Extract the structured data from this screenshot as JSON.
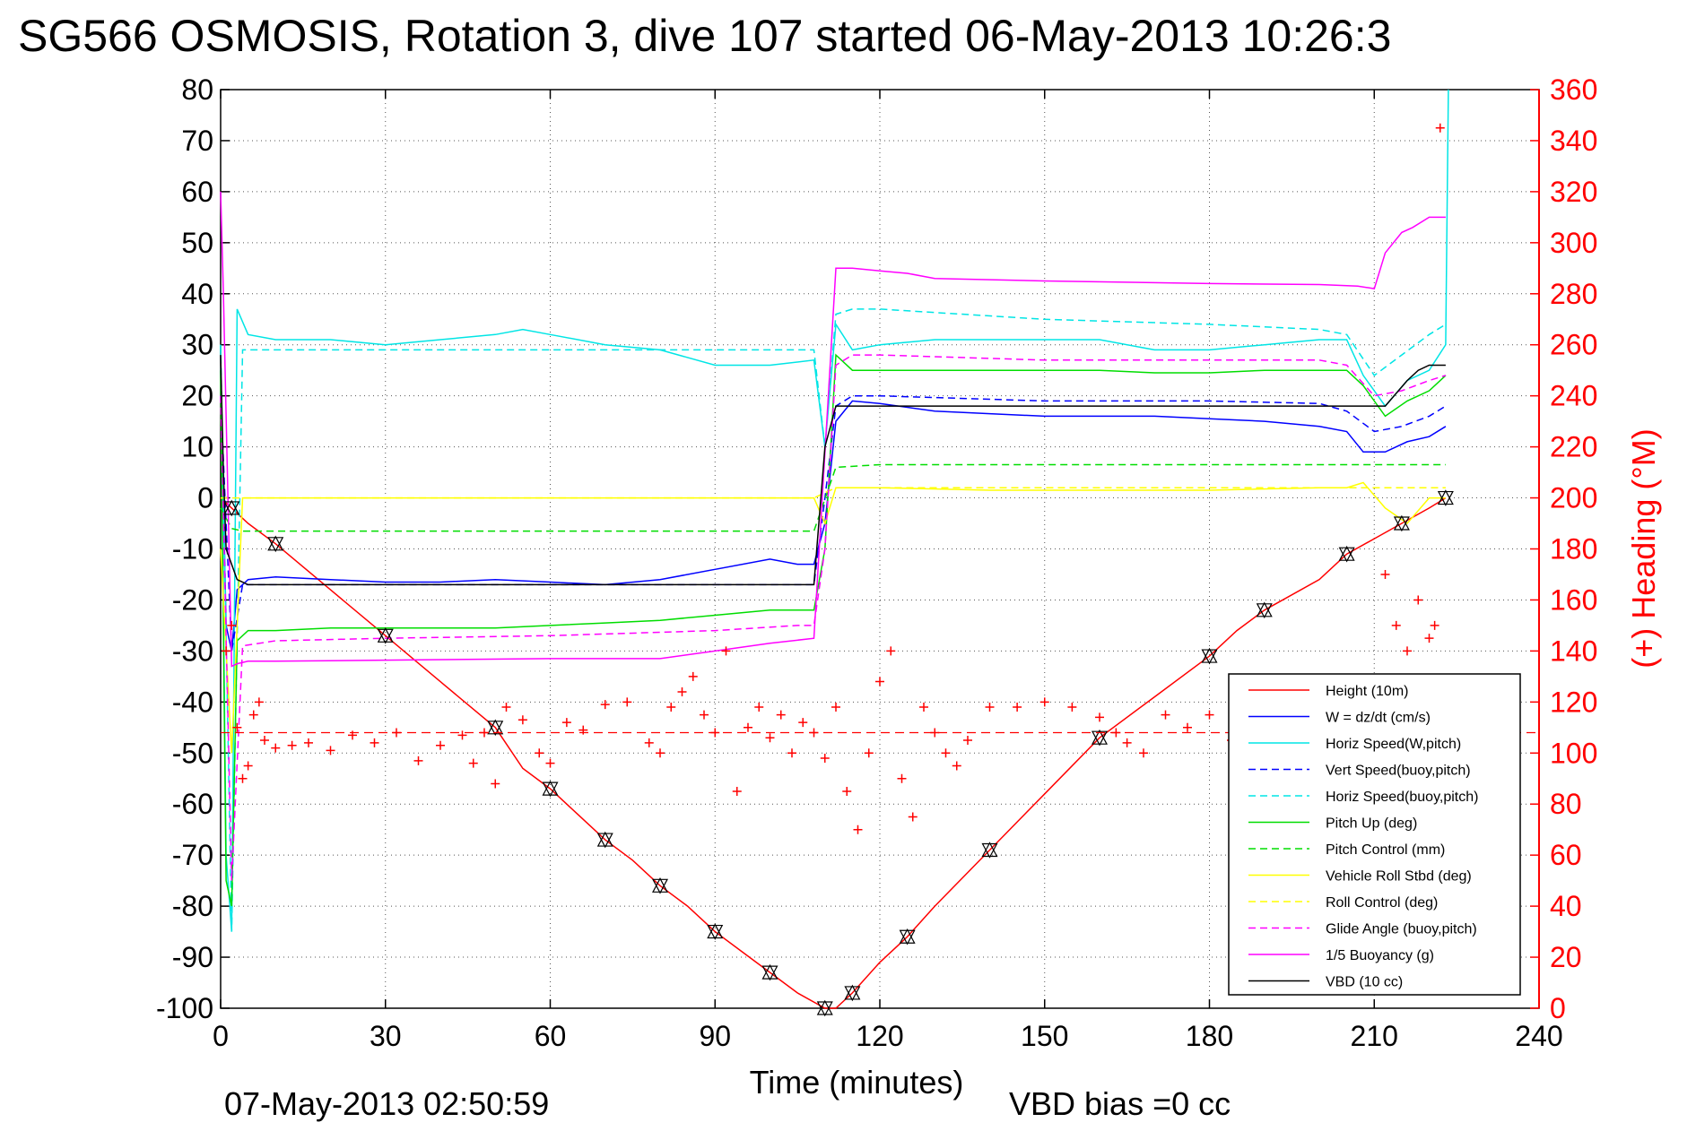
{
  "chart_data": {
    "type": "line",
    "title": "SG566 OSMOSIS, Rotation 3, dive 107 started 06-May-2013 10:26:3",
    "xlabel": "Time (minutes)",
    "ylabel": "",
    "y2label": "(+) Heading (°M)",
    "footer_left": "07-May-2013 02:50:59",
    "footer_right": "VBD bias =0 cc",
    "xlim": [
      0,
      240
    ],
    "ylim": [
      -100,
      80
    ],
    "y2lim": [
      0,
      360
    ],
    "xticks": [
      "0",
      "30",
      "60",
      "90",
      "120",
      "150",
      "180",
      "210",
      "240"
    ],
    "yticks": [
      "80",
      "70",
      "60",
      "50",
      "40",
      "30",
      "20",
      "10",
      "0",
      "-10",
      "-20",
      "-30",
      "-40",
      "-50",
      "-60",
      "-70",
      "-80",
      "-90",
      "-100"
    ],
    "y2ticks": [
      "360",
      "340",
      "320",
      "300",
      "280",
      "260",
      "240",
      "220",
      "200",
      "180",
      "160",
      "140",
      "120",
      "100",
      "80",
      "60",
      "40",
      "20",
      "0"
    ],
    "grid": true,
    "legend_position": "bottom-right",
    "series": [
      {
        "name": "Height (10m)",
        "color": "#ff0000",
        "style": "solid",
        "x": [
          0,
          1,
          2,
          5,
          10,
          20,
          30,
          40,
          50,
          55,
          60,
          65,
          70,
          75,
          80,
          85,
          90,
          95,
          100,
          105,
          110,
          112,
          115,
          120,
          125,
          130,
          140,
          150,
          160,
          170,
          180,
          185,
          190,
          200,
          205,
          210,
          215,
          220,
          223
        ],
        "y": [
          0,
          -1,
          -2,
          -5,
          -9,
          -18,
          -27,
          -36,
          -45,
          -53,
          -57,
          -62,
          -67,
          -71,
          -76,
          -80,
          -85,
          -89,
          -93,
          -97,
          -100,
          -100,
          -97,
          -91,
          -86,
          -80,
          -69,
          -58,
          -47,
          -39,
          -31,
          -26,
          -22,
          -16,
          -11,
          -8,
          -5,
          -2,
          0
        ]
      },
      {
        "name": "W = dz/dt (cm/s)",
        "color": "#0000ff",
        "style": "solid",
        "x": [
          0,
          1,
          2,
          3,
          5,
          10,
          20,
          30,
          40,
          50,
          60,
          70,
          80,
          90,
          100,
          105,
          108,
          110,
          112,
          115,
          120,
          130,
          140,
          150,
          160,
          170,
          180,
          190,
          200,
          205,
          208,
          212,
          216,
          220,
          223
        ],
        "y": [
          25,
          -25,
          -30,
          -18,
          -16,
          -15.5,
          -16,
          -16.5,
          -16.5,
          -16,
          -16.5,
          -17,
          -16,
          -14,
          -12,
          -13,
          -13,
          -5,
          15,
          19,
          18.5,
          17,
          16.5,
          16,
          16,
          16,
          15.5,
          15,
          14,
          13,
          9,
          9,
          11,
          12,
          14
        ]
      },
      {
        "name": "Horiz Speed(W,pitch)",
        "color": "#00e5e5",
        "style": "solid",
        "x": [
          0,
          1,
          2,
          3,
          5,
          10,
          20,
          30,
          40,
          50,
          55,
          60,
          70,
          80,
          90,
          100,
          108,
          110,
          112,
          115,
          120,
          130,
          140,
          150,
          160,
          170,
          180,
          190,
          200,
          205,
          208,
          212,
          216,
          220,
          223,
          223.5
        ],
        "y": [
          30,
          -70,
          -85,
          37,
          32,
          31,
          31,
          30,
          31,
          32,
          33,
          32,
          30,
          29,
          26,
          26,
          27,
          10,
          34,
          29,
          30,
          31,
          31,
          31,
          31,
          29,
          29,
          30,
          31,
          31,
          24,
          18,
          23,
          25,
          30,
          80
        ]
      },
      {
        "name": "Vert Speed(buoy,pitch)",
        "color": "#0000ff",
        "style": "dashed",
        "x": [
          0,
          2,
          4,
          10,
          30,
          60,
          90,
          105,
          108,
          110,
          112,
          115,
          120,
          150,
          180,
          200,
          205,
          210,
          215,
          220,
          223
        ],
        "y": [
          20,
          -30,
          -17,
          -17,
          -17,
          -17,
          -17,
          -17,
          -17,
          0,
          18,
          20,
          20,
          19,
          19,
          18.5,
          17,
          13,
          14,
          16,
          18
        ]
      },
      {
        "name": "Horiz Speed(buoy,pitch)",
        "color": "#00e5e5",
        "style": "dashed",
        "x": [
          0,
          2,
          4,
          10,
          30,
          60,
          90,
          105,
          108,
          110,
          112,
          115,
          120,
          150,
          180,
          200,
          205,
          210,
          215,
          220,
          223
        ],
        "y": [
          30,
          -85,
          29,
          29,
          29,
          29,
          29,
          29,
          29,
          10,
          36,
          37,
          37,
          35,
          34,
          33,
          32,
          24,
          28,
          32,
          34
        ]
      },
      {
        "name": "Pitch Up (deg)",
        "color": "#00dd00",
        "style": "solid",
        "x": [
          0,
          1,
          2,
          3,
          5,
          10,
          20,
          30,
          40,
          50,
          60,
          70,
          80,
          90,
          100,
          108,
          110,
          112,
          115,
          120,
          130,
          140,
          150,
          160,
          170,
          180,
          190,
          200,
          205,
          208,
          212,
          216,
          220,
          223
        ],
        "y": [
          25,
          -75,
          -80,
          -28,
          -26,
          -26,
          -25.5,
          -25.5,
          -25.5,
          -25.5,
          -25,
          -24.5,
          -24,
          -23,
          -22,
          -22,
          -10,
          28,
          25,
          25,
          25,
          25,
          25,
          25,
          24.5,
          24.5,
          25,
          25,
          25,
          22,
          16,
          19,
          21,
          24
        ]
      },
      {
        "name": "Pitch Control (mm)",
        "color": "#00dd00",
        "style": "dashed",
        "x": [
          0,
          2,
          4,
          10,
          60,
          108,
          112,
          120,
          150,
          180,
          205,
          210,
          223
        ],
        "y": [
          -2,
          -6,
          -6.5,
          -6.5,
          -6.5,
          -6.5,
          6,
          6.5,
          6.5,
          6.5,
          6.5,
          6.5,
          6.5
        ]
      },
      {
        "name": "Vehicle Roll Stbd (deg)",
        "color": "#ffff00",
        "style": "solid",
        "x": [
          0,
          2,
          4,
          5,
          10,
          20,
          40,
          60,
          80,
          100,
          108,
          110,
          112,
          115,
          120,
          140,
          160,
          180,
          200,
          205,
          208,
          212,
          216,
          220,
          223
        ],
        "y": [
          -10,
          -50,
          0,
          0,
          0,
          0,
          0,
          0,
          0,
          0,
          0,
          -5,
          2,
          2,
          2,
          1.5,
          1.5,
          1.5,
          2,
          2,
          3,
          -2,
          -5,
          0,
          0
        ]
      },
      {
        "name": "Roll Control (deg)",
        "color": "#ffff00",
        "style": "dashed",
        "x": [
          0,
          4,
          50,
          108,
          112,
          200,
          223
        ],
        "y": [
          0,
          0,
          0,
          0,
          2,
          2,
          2
        ]
      },
      {
        "name": "Glide Angle (buoy,pitch)",
        "color": "#ff00ff",
        "style": "dashed",
        "x": [
          0,
          2,
          4,
          10,
          30,
          60,
          90,
          105,
          108,
          110,
          112,
          115,
          120,
          150,
          180,
          200,
          205,
          210,
          215,
          220,
          223
        ],
        "y": [
          20,
          -75,
          -29,
          -28,
          -27.5,
          -27,
          -26,
          -25,
          -25,
          -10,
          26,
          28,
          28,
          27,
          27,
          27,
          26,
          20,
          21,
          23,
          24
        ]
      },
      {
        "name": "1/5 Buoyancy (g)",
        "color": "#ff00ff",
        "style": "solid",
        "x": [
          0,
          0.5,
          2,
          3,
          5,
          10,
          30,
          60,
          80,
          90,
          100,
          108,
          112,
          115,
          120,
          125,
          130,
          150,
          180,
          200,
          207,
          210,
          212,
          215,
          217,
          220,
          223
        ],
        "y": [
          60,
          40,
          -33,
          -32.5,
          -32,
          -32,
          -31.8,
          -31.5,
          -31.5,
          -30,
          -28.5,
          -27.5,
          45,
          45,
          44.5,
          44,
          43,
          42.5,
          42,
          41.8,
          41.5,
          41,
          48,
          52,
          53,
          55,
          55
        ]
      },
      {
        "name": "VBD (10 cc)",
        "color": "#000000",
        "style": "solid",
        "x": [
          0,
          0.5,
          1,
          3,
          5,
          10,
          30,
          60,
          90,
          108,
          110,
          112,
          115,
          130,
          150,
          180,
          200,
          208,
          212,
          216,
          218,
          220,
          223
        ],
        "y": [
          28,
          5,
          -10,
          -16,
          -17,
          -17,
          -17,
          -17,
          -17,
          -17,
          10,
          18,
          18,
          18,
          18,
          18,
          18,
          18,
          18,
          23,
          25,
          26,
          26
        ]
      }
    ],
    "heading_points": {
      "name": "Heading (°M)",
      "color": "#ff0000",
      "marker": "+",
      "mean": 108,
      "x": [
        1,
        2,
        3,
        4,
        5,
        6,
        7,
        8,
        10,
        13,
        16,
        20,
        24,
        28,
        32,
        36,
        40,
        44,
        46,
        48,
        50,
        52,
        55,
        58,
        60,
        63,
        66,
        70,
        74,
        78,
        80,
        82,
        84,
        86,
        88,
        90,
        92,
        94,
        96,
        98,
        100,
        102,
        104,
        106,
        108,
        110,
        112,
        114,
        116,
        118,
        120,
        122,
        124,
        126,
        128,
        130,
        132,
        134,
        136,
        140,
        145,
        150,
        155,
        160,
        163,
        165,
        168,
        172,
        176,
        180,
        184,
        188,
        192,
        196,
        200,
        204,
        208,
        212,
        214,
        216,
        218,
        220,
        221,
        222
      ],
      "y": [
        140,
        150,
        110,
        90,
        95,
        115,
        120,
        105,
        102,
        103,
        104,
        101,
        107,
        104,
        108,
        97,
        103,
        107,
        96,
        108,
        88,
        118,
        113,
        100,
        96,
        112,
        109,
        119,
        120,
        104,
        100,
        118,
        124,
        130,
        115,
        108,
        140,
        85,
        110,
        118,
        106,
        115,
        100,
        112,
        108,
        98,
        118,
        85,
        70,
        100,
        128,
        140,
        90,
        75,
        118,
        108,
        100,
        95,
        105,
        118,
        118,
        120,
        118,
        114,
        108,
        104,
        100,
        115,
        110,
        115,
        105,
        100,
        110,
        112,
        105,
        115,
        108,
        170,
        150,
        140,
        160,
        145,
        150,
        345
      ]
    }
  }
}
